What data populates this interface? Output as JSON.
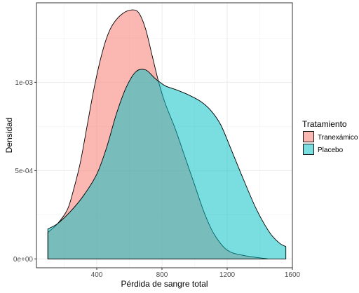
{
  "chart_data": {
    "type": "area",
    "xlabel": "Pérdida de sangre total",
    "ylabel": "Densidad",
    "xlim": [
      30,
      1600
    ],
    "ylim": [
      -5e-05,
      0.00145
    ],
    "x_ticks": [
      400,
      800,
      1200,
      1600
    ],
    "x_tick_labels": [
      "400",
      "800",
      "1200",
      "1600"
    ],
    "y_ticks": [
      0,
      0.0005,
      0.001
    ],
    "y_tick_labels": [
      "0e+00",
      "5e-04",
      "1e-03"
    ],
    "grid": true,
    "legend": {
      "title": "Tratamiento",
      "position": "right"
    },
    "series": [
      {
        "name": "Tranexámico",
        "color": "#F8766D",
        "points": [
          [
            100,
            0.0
          ],
          [
            100,
            0.00015
          ],
          [
            160,
            0.0002
          ],
          [
            220,
            0.00028
          ],
          [
            260,
            0.0004
          ],
          [
            300,
            0.00055
          ],
          [
            340,
            0.00075
          ],
          [
            380,
            0.00095
          ],
          [
            420,
            0.00112
          ],
          [
            460,
            0.00125
          ],
          [
            500,
            0.00133
          ],
          [
            560,
            0.00139
          ],
          [
            620,
            0.00141
          ],
          [
            660,
            0.00139
          ],
          [
            700,
            0.0013
          ],
          [
            740,
            0.00115
          ],
          [
            780,
            0.001
          ],
          [
            820,
            0.00088
          ],
          [
            880,
            0.00074
          ],
          [
            940,
            0.00058
          ],
          [
            1000,
            0.00042
          ],
          [
            1060,
            0.00026
          ],
          [
            1120,
            0.00014
          ],
          [
            1200,
            5e-05
          ],
          [
            1300,
            2e-05
          ],
          [
            1450,
            0.0
          ],
          [
            1450,
            0.0
          ]
        ]
      },
      {
        "name": "Placebo",
        "color": "#00BFC4",
        "points": [
          [
            100,
            0.0
          ],
          [
            100,
            0.00017
          ],
          [
            160,
            0.0002
          ],
          [
            240,
            0.00027
          ],
          [
            320,
            0.00036
          ],
          [
            400,
            0.00048
          ],
          [
            460,
            0.00063
          ],
          [
            520,
            0.00082
          ],
          [
            580,
            0.00097
          ],
          [
            640,
            0.00106
          ],
          [
            700,
            0.00107
          ],
          [
            760,
            0.00102
          ],
          [
            820,
            0.00098
          ],
          [
            880,
            0.00096
          ],
          [
            960,
            0.00093
          ],
          [
            1040,
            0.00089
          ],
          [
            1100,
            0.00084
          ],
          [
            1160,
            0.00076
          ],
          [
            1220,
            0.00063
          ],
          [
            1300,
            0.00045
          ],
          [
            1380,
            0.00028
          ],
          [
            1460,
            0.00015
          ],
          [
            1520,
            9e-05
          ],
          [
            1560,
            7e-05
          ],
          [
            1560,
            0.0
          ]
        ]
      }
    ]
  }
}
